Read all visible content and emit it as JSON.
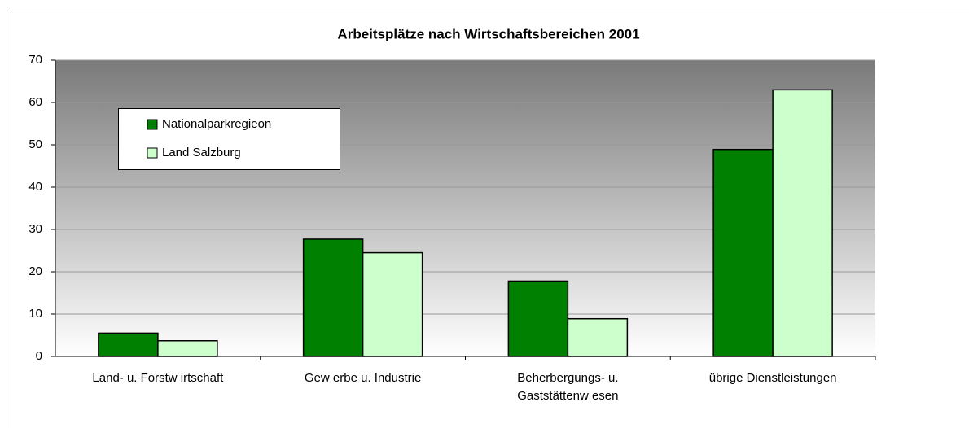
{
  "chart_data": {
    "type": "bar",
    "title": "Arbeitsplätze nach Wirtschaftsbereichen 2001",
    "categories": [
      "Land- u. Forstw irtschaft",
      "Gew erbe u. Industrie",
      "Beherbergungs- u.\nGaststättenw esen",
      "übrige Dienstleistungen"
    ],
    "series": [
      {
        "name": "Nationalparkregieon",
        "color": "#008000",
        "values": [
          5.5,
          27.7,
          17.8,
          48.9
        ]
      },
      {
        "name": "Land Salzburg",
        "color": "#ccffcc",
        "values": [
          3.7,
          24.5,
          8.9,
          63
        ]
      }
    ],
    "ylim": [
      0,
      70
    ],
    "yticks": [
      0,
      10,
      20,
      30,
      40,
      50,
      60,
      70
    ],
    "grid": true,
    "legend": "upper left"
  }
}
